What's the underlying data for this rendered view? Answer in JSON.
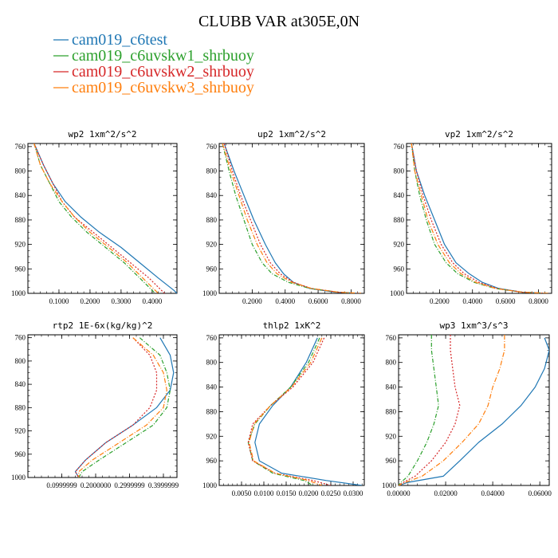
{
  "figure": {
    "title": "CLUBB VAR at305E,0N",
    "legend": [
      {
        "label": "cam019_c6test",
        "color": "#1f77b4",
        "dash": ""
      },
      {
        "label": "cam019_c6uvskw1_shrbuoy",
        "color": "#2ca02c",
        "dash": "5,2,1,2"
      },
      {
        "label": "cam019_c6uvskw2_shrbuoy",
        "color": "#d62728",
        "dash": "2,2"
      },
      {
        "label": "cam019_c6uvskw3_shrbuoy",
        "color": "#ff7f0e",
        "dash": "6,2,1,2"
      }
    ]
  },
  "chart_data": [
    {
      "type": "line",
      "title": "wp2  1xm^2/s^2",
      "xlim": [
        0.0,
        0.48
      ],
      "ylim": [
        1000,
        755
      ],
      "xticks": [
        0.1,
        0.2,
        0.3,
        0.4
      ],
      "xtick_labels": [
        "0.1000",
        "0.2000",
        "0.3000",
        "0.4000"
      ],
      "yticks": [
        760,
        800,
        840,
        880,
        920,
        960,
        1000
      ],
      "ytick_labels": [
        "760",
        "800",
        "840",
        "880",
        "920",
        "960",
        "1000"
      ],
      "series": [
        {
          "name": "cam019_c6test",
          "x": [
            0.02,
            0.05,
            0.08,
            0.12,
            0.17,
            0.23,
            0.3,
            0.36,
            0.42,
            0.47,
            0.48
          ],
          "y": [
            755,
            790,
            820,
            850,
            875,
            900,
            925,
            950,
            975,
            995,
            1000
          ]
        },
        {
          "name": "cam019_c6uvskw1_shrbuoy",
          "x": [
            0.02,
            0.04,
            0.07,
            0.1,
            0.14,
            0.19,
            0.25,
            0.31,
            0.36,
            0.4,
            0.41
          ],
          "y": [
            755,
            790,
            820,
            850,
            875,
            900,
            925,
            950,
            975,
            995,
            1000
          ]
        },
        {
          "name": "cam019_c6uvskw2_shrbuoy",
          "x": [
            0.02,
            0.05,
            0.08,
            0.11,
            0.15,
            0.21,
            0.27,
            0.33,
            0.39,
            0.43,
            0.44
          ],
          "y": [
            755,
            790,
            820,
            850,
            875,
            900,
            925,
            950,
            975,
            995,
            1000
          ]
        },
        {
          "name": "cam019_c6uvskw3_shrbuoy",
          "x": [
            0.02,
            0.04,
            0.07,
            0.11,
            0.15,
            0.2,
            0.26,
            0.32,
            0.37,
            0.41,
            0.42
          ],
          "y": [
            755,
            790,
            820,
            850,
            875,
            900,
            925,
            950,
            975,
            995,
            1000
          ]
        }
      ]
    },
    {
      "type": "line",
      "title": "up2  1xm^2/s^2",
      "xlim": [
        0.0,
        0.88
      ],
      "ylim": [
        1000,
        755
      ],
      "xticks": [
        0.2,
        0.4,
        0.6,
        0.8
      ],
      "xtick_labels": [
        "0.2000",
        "0.4000",
        "0.6000",
        "0.8000"
      ],
      "yticks": [
        760,
        800,
        840,
        880,
        920,
        960,
        1000
      ],
      "ytick_labels": [
        "760",
        "800",
        "840",
        "880",
        "920",
        "960",
        "1000"
      ],
      "series": [
        {
          "name": "cam019_c6test",
          "x": [
            0.03,
            0.09,
            0.15,
            0.21,
            0.28,
            0.34,
            0.39,
            0.45,
            0.55,
            0.7,
            0.86
          ],
          "y": [
            755,
            800,
            840,
            880,
            920,
            950,
            968,
            982,
            992,
            998,
            1000
          ]
        },
        {
          "name": "cam019_c6uvskw1_shrbuoy",
          "x": [
            0.02,
            0.06,
            0.1,
            0.15,
            0.2,
            0.26,
            0.32,
            0.42,
            0.55,
            0.72,
            0.86
          ],
          "y": [
            755,
            800,
            840,
            880,
            920,
            950,
            968,
            982,
            992,
            998,
            1000
          ]
        },
        {
          "name": "cam019_c6uvskw2_shrbuoy",
          "x": [
            0.03,
            0.08,
            0.13,
            0.19,
            0.25,
            0.31,
            0.37,
            0.45,
            0.56,
            0.72,
            0.86
          ],
          "y": [
            755,
            800,
            840,
            880,
            920,
            950,
            968,
            982,
            992,
            998,
            1000
          ]
        },
        {
          "name": "cam019_c6uvskw3_shrbuoy",
          "x": [
            0.02,
            0.07,
            0.12,
            0.17,
            0.23,
            0.29,
            0.35,
            0.44,
            0.56,
            0.72,
            0.86
          ],
          "y": [
            755,
            800,
            840,
            880,
            920,
            950,
            968,
            982,
            992,
            998,
            1000
          ]
        }
      ]
    },
    {
      "type": "line",
      "title": "vp2  1xm^2/s^2",
      "xlim": [
        0.0,
        0.88
      ],
      "ylim": [
        1000,
        755
      ],
      "xticks": [
        0.2,
        0.4,
        0.6,
        0.8
      ],
      "xtick_labels": [
        "0.2000",
        "0.4000",
        "0.6000",
        "0.8000"
      ],
      "yticks": [
        760,
        800,
        840,
        880,
        920,
        960,
        1000
      ],
      "ytick_labels": [
        "760",
        "800",
        "840",
        "880",
        "920",
        "960",
        "1000"
      ],
      "series": [
        {
          "name": "cam019_c6test",
          "x": [
            0.03,
            0.06,
            0.11,
            0.17,
            0.23,
            0.3,
            0.38,
            0.46,
            0.56,
            0.7,
            0.86
          ],
          "y": [
            755,
            800,
            840,
            880,
            920,
            950,
            968,
            982,
            992,
            998,
            1000
          ]
        },
        {
          "name": "cam019_c6uvskw1_shrbuoy",
          "x": [
            0.03,
            0.05,
            0.08,
            0.12,
            0.17,
            0.24,
            0.31,
            0.41,
            0.54,
            0.7,
            0.86
          ],
          "y": [
            755,
            800,
            840,
            880,
            920,
            950,
            968,
            982,
            992,
            998,
            1000
          ]
        },
        {
          "name": "cam019_c6uvskw2_shrbuoy",
          "x": [
            0.03,
            0.06,
            0.1,
            0.15,
            0.21,
            0.28,
            0.35,
            0.44,
            0.55,
            0.7,
            0.86
          ],
          "y": [
            755,
            800,
            840,
            880,
            920,
            950,
            968,
            982,
            992,
            998,
            1000
          ]
        },
        {
          "name": "cam019_c6uvskw3_shrbuoy",
          "x": [
            0.03,
            0.05,
            0.09,
            0.13,
            0.19,
            0.26,
            0.33,
            0.42,
            0.54,
            0.7,
            0.86
          ],
          "y": [
            755,
            800,
            840,
            880,
            920,
            950,
            968,
            982,
            992,
            998,
            1000
          ]
        }
      ]
    },
    {
      "type": "line",
      "title": "rtp2  1E-6x(kg/kg)^2",
      "xlim": [
        0.0,
        0.44
      ],
      "ylim": [
        1000,
        755
      ],
      "xticks": [
        0.1,
        0.2,
        0.3,
        0.4
      ],
      "xtick_labels": [
        "0.0999999",
        "0.2000000",
        "0.2999999",
        "0.3999999"
      ],
      "yticks": [
        760,
        800,
        840,
        880,
        920,
        960,
        1000
      ],
      "ytick_labels": [
        "760",
        "800",
        "840",
        "880",
        "920",
        "960",
        "1000"
      ],
      "series": [
        {
          "name": "cam019_c6test",
          "x": [
            0.39,
            0.42,
            0.43,
            0.42,
            0.38,
            0.31,
            0.23,
            0.17,
            0.14,
            0.15
          ],
          "y": [
            760,
            790,
            820,
            850,
            880,
            910,
            940,
            970,
            990,
            1000
          ]
        },
        {
          "name": "cam019_c6uvskw1_shrbuoy",
          "x": [
            0.33,
            0.39,
            0.41,
            0.42,
            0.41,
            0.37,
            0.29,
            0.21,
            0.16,
            0.15
          ],
          "y": [
            760,
            790,
            820,
            850,
            880,
            910,
            940,
            970,
            990,
            1000
          ]
        },
        {
          "name": "cam019_c6uvskw2_shrbuoy",
          "x": [
            0.31,
            0.36,
            0.38,
            0.38,
            0.36,
            0.31,
            0.23,
            0.17,
            0.14,
            0.15
          ],
          "y": [
            760,
            790,
            820,
            850,
            880,
            910,
            940,
            970,
            990,
            1000
          ]
        },
        {
          "name": "cam019_c6uvskw3_shrbuoy",
          "x": [
            0.31,
            0.37,
            0.4,
            0.41,
            0.4,
            0.35,
            0.27,
            0.19,
            0.15,
            0.15
          ],
          "y": [
            760,
            790,
            820,
            850,
            880,
            910,
            940,
            970,
            990,
            1000
          ]
        }
      ]
    },
    {
      "type": "line",
      "title": "thlp2  1xK^2",
      "xlim": [
        0.0,
        0.0325
      ],
      "ylim": [
        1000,
        755
      ],
      "xticks": [
        0.005,
        0.01,
        0.015,
        0.02,
        0.025,
        0.03
      ],
      "xtick_labels": [
        "0.0050",
        "0.0100",
        "0.0150",
        "0.0200",
        "0.0250",
        "0.0300"
      ],
      "yticks": [
        760,
        800,
        840,
        880,
        920,
        960,
        1000
      ],
      "ytick_labels": [
        "760",
        "800",
        "840",
        "880",
        "920",
        "960",
        "1000"
      ],
      "series": [
        {
          "name": "cam019_c6test",
          "x": [
            0.022,
            0.0195,
            0.016,
            0.012,
            0.009,
            0.008,
            0.009,
            0.014,
            0.024,
            0.032
          ],
          "y": [
            760,
            800,
            840,
            870,
            900,
            930,
            960,
            980,
            992,
            1000
          ]
        },
        {
          "name": "cam019_c6uvskw1_shrbuoy",
          "x": [
            0.0225,
            0.02,
            0.016,
            0.0115,
            0.008,
            0.0065,
            0.0075,
            0.012,
            0.019,
            0.021
          ],
          "y": [
            760,
            800,
            840,
            870,
            900,
            930,
            960,
            980,
            992,
            1000
          ]
        },
        {
          "name": "cam019_c6uvskw2_shrbuoy",
          "x": [
            0.0235,
            0.021,
            0.0165,
            0.0115,
            0.0075,
            0.0065,
            0.0075,
            0.0125,
            0.021,
            0.025
          ],
          "y": [
            760,
            800,
            840,
            870,
            900,
            930,
            960,
            980,
            992,
            1000
          ]
        },
        {
          "name": "cam019_c6uvskw3_shrbuoy",
          "x": [
            0.023,
            0.0205,
            0.0162,
            0.0115,
            0.0078,
            0.0067,
            0.0077,
            0.0125,
            0.02,
            0.023
          ],
          "y": [
            760,
            800,
            840,
            870,
            900,
            930,
            960,
            980,
            992,
            1000
          ]
        }
      ]
    },
    {
      "type": "line",
      "title": "wp3  1xm^3/s^3",
      "xlim": [
        0.0,
        0.064
      ],
      "ylim": [
        1000,
        755
      ],
      "xticks": [
        0.0,
        0.02,
        0.04,
        0.06
      ],
      "xtick_labels": [
        "0.00000",
        "0.02000",
        "0.04000",
        "0.06000"
      ],
      "yticks": [
        760,
        800,
        840,
        880,
        920,
        960,
        1000
      ],
      "ytick_labels": [
        "760",
        "800",
        "840",
        "880",
        "920",
        "960",
        "1000"
      ],
      "series": [
        {
          "name": "cam019_c6test",
          "x": [
            0.062,
            0.064,
            0.062,
            0.058,
            0.052,
            0.044,
            0.034,
            0.026,
            0.019,
            0.004,
            0.0
          ],
          "y": [
            760,
            780,
            810,
            840,
            870,
            900,
            930,
            960,
            985,
            995,
            1000
          ]
        },
        {
          "name": "cam019_c6uvskw1_shrbuoy",
          "x": [
            0.014,
            0.014,
            0.015,
            0.016,
            0.017,
            0.015,
            0.012,
            0.008,
            0.004,
            0.001,
            0.0
          ],
          "y": [
            755,
            780,
            810,
            840,
            870,
            900,
            930,
            960,
            985,
            995,
            1000
          ]
        },
        {
          "name": "cam019_c6uvskw2_shrbuoy",
          "x": [
            0.022,
            0.022,
            0.023,
            0.024,
            0.026,
            0.024,
            0.02,
            0.014,
            0.007,
            0.002,
            0.0
          ],
          "y": [
            755,
            780,
            810,
            840,
            870,
            900,
            930,
            960,
            985,
            995,
            1000
          ]
        },
        {
          "name": "cam019_c6uvskw3_shrbuoy",
          "x": [
            0.045,
            0.045,
            0.043,
            0.04,
            0.038,
            0.034,
            0.027,
            0.019,
            0.01,
            0.003,
            0.0
          ],
          "y": [
            755,
            780,
            810,
            840,
            870,
            900,
            930,
            960,
            985,
            995,
            1000
          ]
        }
      ]
    }
  ]
}
